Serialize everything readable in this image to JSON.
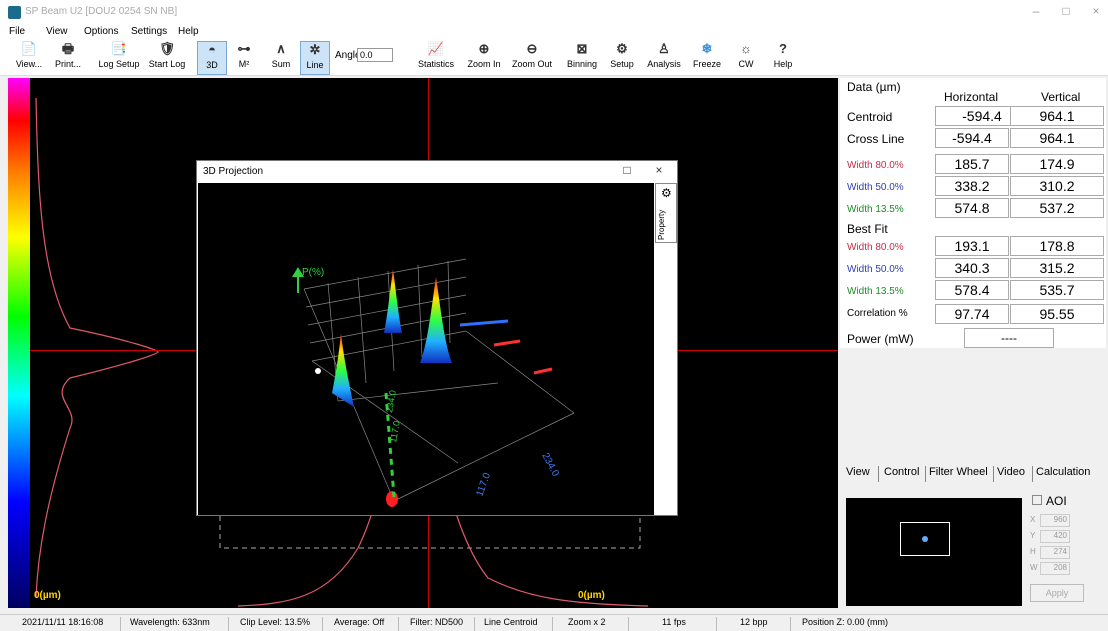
{
  "window": {
    "title": "SP Beam U2  [DOU2 0254 SN NB]"
  },
  "window_controls": {
    "minimize": "–",
    "maximize": "□",
    "close": "×"
  },
  "menu": [
    "File",
    "View",
    "Options",
    "Settings",
    "Help"
  ],
  "toolbar": {
    "view": "View...",
    "print": "Print...",
    "log_setup": "Log Setup",
    "start_log": "Start Log",
    "three_d": "3D",
    "m2": "M²",
    "sum": "Sum",
    "line": "Line",
    "angle_label": "Angle",
    "angle_value": "0.0",
    "statistics": "Statistics",
    "zoom_in": "Zoom In",
    "zoom_out": "Zoom Out",
    "binning": "Binning",
    "setup": "Setup",
    "analysis": "Analysis",
    "freeze": "Freeze",
    "cw": "CW",
    "help": "Help"
  },
  "icons": {
    "view": "📄",
    "print": "🖶",
    "log_setup": "📑",
    "start_log": "🛡",
    "three_d": "◓",
    "m2": "⊶",
    "sum": "∧",
    "line": "✲",
    "statistics": "📈",
    "zoom_in": "⊕",
    "zoom_out": "⊖",
    "binning": "⊠",
    "setup": "⚙",
    "analysis": "♙",
    "freeze": "❄",
    "cw": "☼",
    "help": "?",
    "gear": "⚙"
  },
  "viewport": {
    "x_axis_label": "0(µm)",
    "y_axis_label": "0(µm)"
  },
  "projection": {
    "title": "3D Projection",
    "property": "Property",
    "axis_y": "P(%)",
    "tick_1": "117.0",
    "tick_2": "234.0",
    "tick_3": "117.0",
    "tick_4": "234.0"
  },
  "data": {
    "header": "Data (µm)",
    "col_h": "Horizontal",
    "col_v": "Vertical",
    "rows": [
      {
        "label": "Centroid",
        "h": "-594.4",
        "v": "964.1",
        "color": "#000000"
      },
      {
        "label": "Cross Line",
        "h": "-594.4",
        "v": "964.1",
        "color": "#000000"
      },
      {
        "label": "Width 80.0%",
        "h": "185.7",
        "v": "174.9",
        "color": "#c0304a"
      },
      {
        "label": "Width 50.0%",
        "h": "338.2",
        "v": "310.2",
        "color": "#3040b0"
      },
      {
        "label": "Width 13.5%",
        "h": "574.8",
        "v": "537.2",
        "color": "#1e8a2a"
      }
    ],
    "best_fit_label": "Best Fit",
    "fit_rows": [
      {
        "label": "Width 80.0%",
        "h": "193.1",
        "v": "178.8",
        "color": "#c0304a"
      },
      {
        "label": "Width 50.0%",
        "h": "340.3",
        "v": "315.2",
        "color": "#3040b0"
      },
      {
        "label": "Width 13.5%",
        "h": "578.4",
        "v": "535.7",
        "color": "#1e8a2a"
      },
      {
        "label": "Correlation %",
        "h": "97.74",
        "v": "95.55",
        "color": "#000000"
      }
    ],
    "power_label": "Power (mW)",
    "power_value": "----"
  },
  "tabs": [
    "View",
    "Control",
    "Filter Wheel",
    "Video",
    "Calculation"
  ],
  "aoi": {
    "label": "AOI",
    "fields": [
      {
        "k": "X",
        "v": "960"
      },
      {
        "k": "Y",
        "v": "420"
      },
      {
        "k": "H",
        "v": "274"
      },
      {
        "k": "W",
        "v": "208"
      }
    ],
    "apply": "Apply"
  },
  "status": {
    "datetime": "2021/11/11 18:16:08",
    "wavelength": "Wavelength: 633nm",
    "clip": "Clip Level: 13.5%",
    "average": "Average: Off",
    "filter": "Filter: ND500",
    "mode": "Line Centroid",
    "zoom": "Zoom x 2",
    "fps": "11 fps",
    "bpp": "12 bpp",
    "position": "Position Z: 0.00 (mm)"
  }
}
